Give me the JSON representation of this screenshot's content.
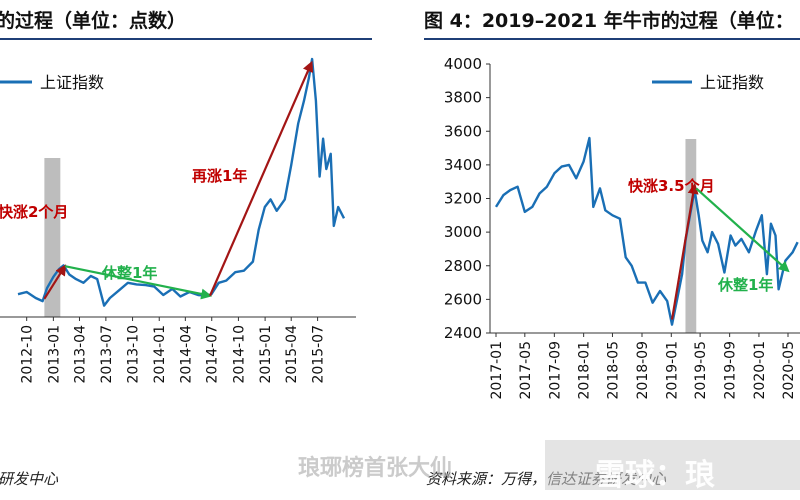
{
  "left": {
    "title": "的过程（单位：点数）",
    "source": "研发中心",
    "chart_data": {
      "type": "line",
      "series": [
        {
          "name": "上证指数",
          "color": "#1a6fb5"
        }
      ],
      "x_ticks": [
        "2012-10",
        "2013-01",
        "2013-04",
        "2013-07",
        "2013-10",
        "2014-01",
        "2014-04",
        "2014-07",
        "2014-10",
        "2015-01",
        "2015-04",
        "2015-07"
      ],
      "y_ticks": [],
      "grid": false,
      "legend": "top-left",
      "points": [
        [
          "2012-09-01",
          2050
        ],
        [
          "2012-10-01",
          2080
        ],
        [
          "2012-11-01",
          2000
        ],
        [
          "2012-11-25",
          1960
        ],
        [
          "2012-12-10",
          2130
        ],
        [
          "2013-01-01",
          2280
        ],
        [
          "2013-01-20",
          2380
        ],
        [
          "2013-02-05",
          2430
        ],
        [
          "2013-02-25",
          2310
        ],
        [
          "2013-03-20",
          2250
        ],
        [
          "2013-04-15",
          2200
        ],
        [
          "2013-05-10",
          2290
        ],
        [
          "2013-06-01",
          2250
        ],
        [
          "2013-06-25",
          1900
        ],
        [
          "2013-07-15",
          2000
        ],
        [
          "2013-08-15",
          2100
        ],
        [
          "2013-09-15",
          2200
        ],
        [
          "2013-10-15",
          2180
        ],
        [
          "2013-11-15",
          2170
        ],
        [
          "2013-12-15",
          2150
        ],
        [
          "2014-01-15",
          2040
        ],
        [
          "2014-02-15",
          2120
        ],
        [
          "2014-03-15",
          2020
        ],
        [
          "2014-04-15",
          2080
        ],
        [
          "2014-05-15",
          2040
        ],
        [
          "2014-06-15",
          2030
        ],
        [
          "2014-06-30",
          2050
        ],
        [
          "2014-07-25",
          2200
        ],
        [
          "2014-08-20",
          2230
        ],
        [
          "2014-09-20",
          2340
        ],
        [
          "2014-10-20",
          2360
        ],
        [
          "2014-11-20",
          2480
        ],
        [
          "2014-12-10",
          2900
        ],
        [
          "2014-12-31",
          3200
        ],
        [
          "2015-01-20",
          3300
        ],
        [
          "2015-02-10",
          3150
        ],
        [
          "2015-03-10",
          3300
        ],
        [
          "2015-04-01",
          3750
        ],
        [
          "2015-04-25",
          4300
        ],
        [
          "2015-05-15",
          4600
        ],
        [
          "2015-06-01",
          4900
        ],
        [
          "2015-06-12",
          5150
        ],
        [
          "2015-06-25",
          4600
        ],
        [
          "2015-07-08",
          3600
        ],
        [
          "2015-07-20",
          4100
        ],
        [
          "2015-07-31",
          3700
        ],
        [
          "2015-08-15",
          3900
        ],
        [
          "2015-08-26",
          2950
        ],
        [
          "2015-09-10",
          3200
        ],
        [
          "2015-09-30",
          3050
        ]
      ],
      "annotations": [
        {
          "text": "快涨2个月",
          "color": "#c00000",
          "from": [
            "2012-12-01",
            1990
          ],
          "to": [
            "2013-02-10",
            2420
          ]
        },
        {
          "text": "休整1年",
          "color": "#22b14c",
          "from": [
            "2013-02-10",
            2420
          ],
          "to": [
            "2014-06-25",
            2030
          ]
        },
        {
          "text": "再涨1年",
          "color": "#c00000",
          "from": [
            "2014-06-25",
            2030
          ],
          "to": [
            "2015-06-10",
            5100
          ]
        }
      ],
      "highlight": {
        "from": "2012-12-01",
        "to": "2013-01-25"
      }
    }
  },
  "right": {
    "title": "图 4：2019–2021 年牛市的过程（单位：",
    "source": "资料来源：万得，信达证券研发中心",
    "chart_data": {
      "type": "line",
      "series": [
        {
          "name": "上证指数",
          "color": "#1a6fb5"
        }
      ],
      "x_ticks": [
        "2017-01",
        "2017-05",
        "2017-09",
        "2018-01",
        "2018-05",
        "2018-09",
        "2019-01",
        "2019-05",
        "2019-09",
        "2020-01",
        "2020-05"
      ],
      "y_ticks": [
        2400,
        2600,
        2800,
        3000,
        3200,
        3400,
        3600,
        3800,
        4000
      ],
      "ylim": [
        2400,
        4000
      ],
      "grid": false,
      "legend": "top-right",
      "points": [
        [
          "2017-01-01",
          3150
        ],
        [
          "2017-02-01",
          3220
        ],
        [
          "2017-03-01",
          3250
        ],
        [
          "2017-04-01",
          3270
        ],
        [
          "2017-05-01",
          3120
        ],
        [
          "2017-06-01",
          3150
        ],
        [
          "2017-07-01",
          3230
        ],
        [
          "2017-08-01",
          3270
        ],
        [
          "2017-09-01",
          3350
        ],
        [
          "2017-10-01",
          3390
        ],
        [
          "2017-11-01",
          3400
        ],
        [
          "2017-12-01",
          3320
        ],
        [
          "2018-01-01",
          3420
        ],
        [
          "2018-01-25",
          3560
        ],
        [
          "2018-02-10",
          3150
        ],
        [
          "2018-03-10",
          3260
        ],
        [
          "2018-04-01",
          3130
        ],
        [
          "2018-05-01",
          3100
        ],
        [
          "2018-06-01",
          3080
        ],
        [
          "2018-06-25",
          2850
        ],
        [
          "2018-07-20",
          2800
        ],
        [
          "2018-08-15",
          2700
        ],
        [
          "2018-09-15",
          2700
        ],
        [
          "2018-10-15",
          2580
        ],
        [
          "2018-11-15",
          2650
        ],
        [
          "2018-12-15",
          2590
        ],
        [
          "2019-01-04",
          2450
        ],
        [
          "2019-01-25",
          2600
        ],
        [
          "2019-02-15",
          2750
        ],
        [
          "2019-03-01",
          2950
        ],
        [
          "2019-03-20",
          3100
        ],
        [
          "2019-04-08",
          3250
        ],
        [
          "2019-04-25",
          3100
        ],
        [
          "2019-05-10",
          2950
        ],
        [
          "2019-06-01",
          2880
        ],
        [
          "2019-06-20",
          3000
        ],
        [
          "2019-07-15",
          2930
        ],
        [
          "2019-08-10",
          2760
        ],
        [
          "2019-09-05",
          2980
        ],
        [
          "2019-09-25",
          2920
        ],
        [
          "2019-10-20",
          2960
        ],
        [
          "2019-11-20",
          2880
        ],
        [
          "2019-12-20",
          3010
        ],
        [
          "2020-01-13",
          3100
        ],
        [
          "2020-02-03",
          2750
        ],
        [
          "2020-02-20",
          3050
        ],
        [
          "2020-03-10",
          2980
        ],
        [
          "2020-03-23",
          2660
        ],
        [
          "2020-04-20",
          2830
        ],
        [
          "2020-05-20",
          2880
        ],
        [
          "2020-06-10",
          2940
        ]
      ],
      "annotations": [
        {
          "text": "快涨3.5个月",
          "color": "#c00000",
          "from": [
            "2019-01-04",
            2480
          ],
          "to": [
            "2019-04-08",
            3280
          ]
        },
        {
          "text": "休整1年",
          "color": "#22b14c",
          "from": [
            "2019-04-15",
            3260
          ],
          "to": [
            "2020-05-01",
            2770
          ]
        }
      ],
      "highlight": {
        "from": "2019-03-01",
        "to": "2019-04-15"
      }
    }
  },
  "watermark": {
    "channel": "琅琊榜首张大仙",
    "platform": "雪球：琅"
  }
}
